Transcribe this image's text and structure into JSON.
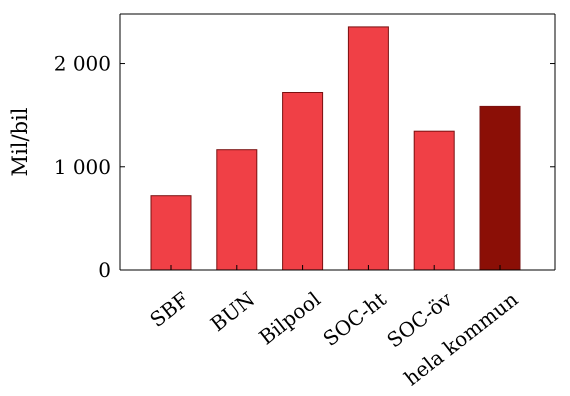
{
  "chart_data": {
    "type": "bar",
    "categories": [
      "SBF",
      "BUN",
      "Bilpool",
      "SOC-ht",
      "SOC-öv",
      "hela kommun"
    ],
    "values": [
      720,
      1165,
      1720,
      2355,
      1345,
      1585
    ],
    "title": "",
    "xlabel": "",
    "ylabel": "Mil/bil",
    "ylim": [
      0,
      2480
    ],
    "yticks": [
      0,
      1000,
      2000
    ],
    "ytick_labels": [
      "0",
      "1 000",
      "2 000"
    ],
    "grid": false,
    "colors": [
      "#f04046",
      "#f04046",
      "#f04046",
      "#f04046",
      "#f04046",
      "#8b0f06"
    ],
    "edge_color": "#7a1010"
  }
}
